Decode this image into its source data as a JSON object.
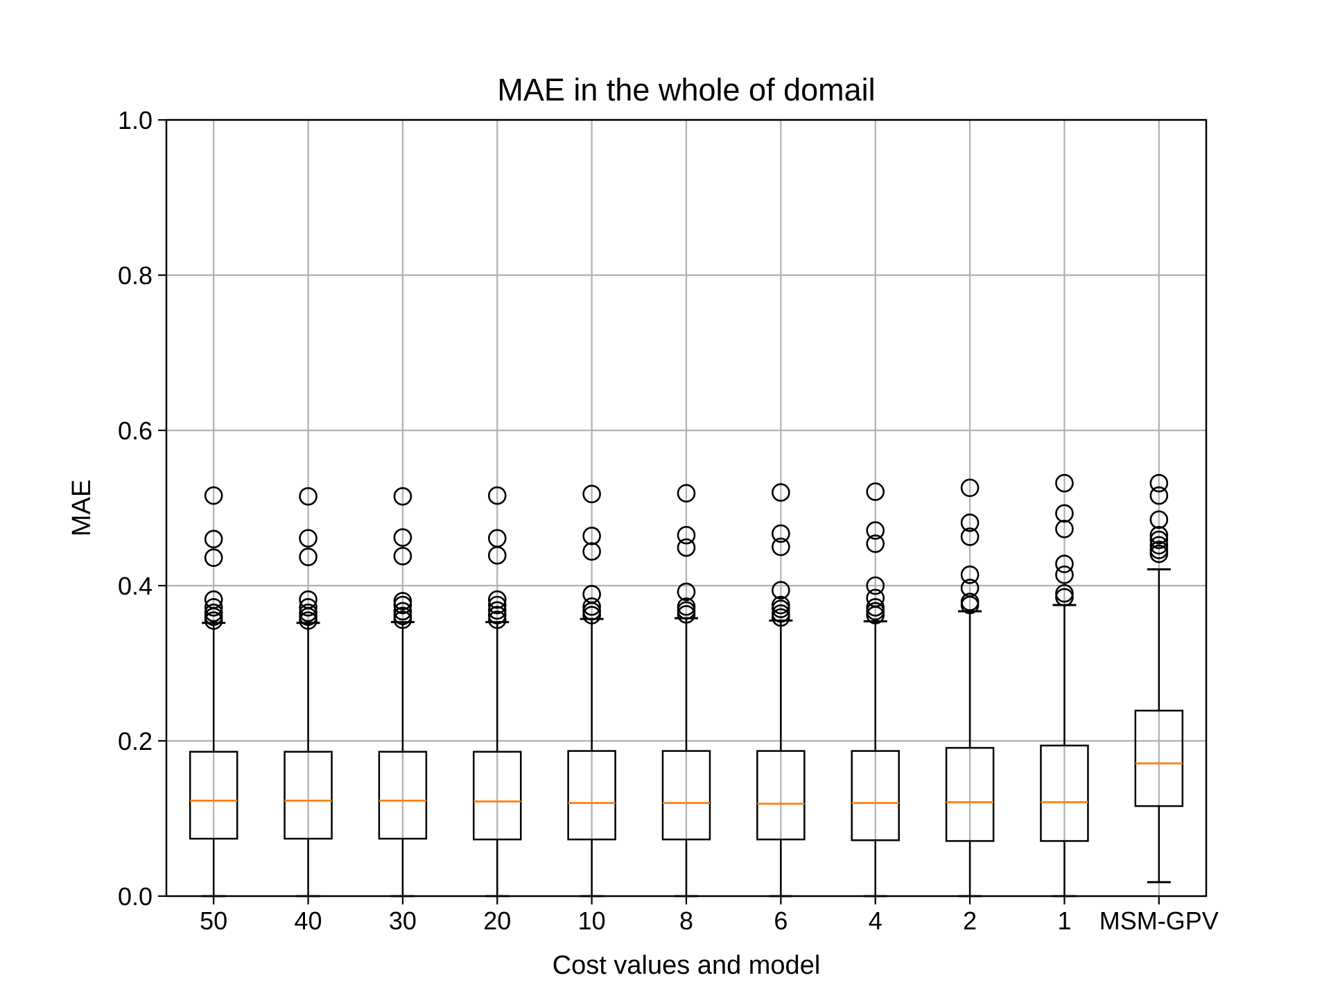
{
  "chart_data": {
    "type": "boxplot",
    "title": "MAE in the whole of domail",
    "xlabel": "Cost values and model",
    "ylabel": "MAE",
    "ylim": [
      0.0,
      1.0
    ],
    "yticks": [
      "0.0",
      "0.2",
      "0.4",
      "0.6",
      "0.8",
      "1.0"
    ],
    "grid": true,
    "categories": [
      "50",
      "40",
      "30",
      "20",
      "10",
      "8",
      "6",
      "4",
      "2",
      "1",
      "MSM-GPV"
    ],
    "boxes": [
      {
        "whisker_low": 0.0,
        "q1": 0.074,
        "median": 0.123,
        "q3": 0.186,
        "whisker_high": 0.352,
        "outliers": [
          0.355,
          0.36,
          0.365,
          0.372,
          0.382,
          0.436,
          0.46,
          0.516
        ]
      },
      {
        "whisker_low": 0.0,
        "q1": 0.074,
        "median": 0.123,
        "q3": 0.186,
        "whisker_high": 0.352,
        "outliers": [
          0.355,
          0.36,
          0.365,
          0.372,
          0.382,
          0.437,
          0.461,
          0.515
        ]
      },
      {
        "whisker_low": 0.0,
        "q1": 0.074,
        "median": 0.123,
        "q3": 0.186,
        "whisker_high": 0.353,
        "outliers": [
          0.356,
          0.361,
          0.367,
          0.375,
          0.38,
          0.438,
          0.462,
          0.515
        ]
      },
      {
        "whisker_low": 0.0,
        "q1": 0.073,
        "median": 0.122,
        "q3": 0.186,
        "whisker_high": 0.353,
        "outliers": [
          0.356,
          0.362,
          0.368,
          0.375,
          0.382,
          0.439,
          0.461,
          0.516
        ]
      },
      {
        "whisker_low": 0.0,
        "q1": 0.073,
        "median": 0.12,
        "q3": 0.187,
        "whisker_high": 0.357,
        "outliers": [
          0.362,
          0.367,
          0.373,
          0.389,
          0.444,
          0.464,
          0.518
        ]
      },
      {
        "whisker_low": 0.0,
        "q1": 0.073,
        "median": 0.12,
        "q3": 0.187,
        "whisker_high": 0.358,
        "outliers": [
          0.363,
          0.368,
          0.373,
          0.392,
          0.449,
          0.465,
          0.519
        ]
      },
      {
        "whisker_low": 0.0,
        "q1": 0.073,
        "median": 0.119,
        "q3": 0.187,
        "whisker_high": 0.355,
        "outliers": [
          0.359,
          0.364,
          0.37,
          0.375,
          0.394,
          0.45,
          0.467,
          0.52
        ]
      },
      {
        "whisker_low": 0.0,
        "q1": 0.072,
        "median": 0.12,
        "q3": 0.187,
        "whisker_high": 0.354,
        "outliers": [
          0.362,
          0.367,
          0.372,
          0.384,
          0.4,
          0.454,
          0.471,
          0.521
        ]
      },
      {
        "whisker_low": 0.0,
        "q1": 0.071,
        "median": 0.121,
        "q3": 0.191,
        "whisker_high": 0.367,
        "outliers": [
          0.375,
          0.379,
          0.397,
          0.414,
          0.463,
          0.481,
          0.526
        ]
      },
      {
        "whisker_low": 0.0,
        "q1": 0.071,
        "median": 0.121,
        "q3": 0.194,
        "whisker_high": 0.375,
        "outliers": [
          0.385,
          0.39,
          0.414,
          0.428,
          0.473,
          0.493,
          0.532
        ]
      },
      {
        "whisker_low": 0.018,
        "q1": 0.116,
        "median": 0.171,
        "q3": 0.239,
        "whisker_high": 0.421,
        "outliers": [
          0.441,
          0.446,
          0.452,
          0.459,
          0.465,
          0.485,
          0.516,
          0.532
        ]
      }
    ],
    "colors": {
      "box": "#000000",
      "median": "#ff7f0e",
      "grid": "#b0b0b0"
    }
  }
}
